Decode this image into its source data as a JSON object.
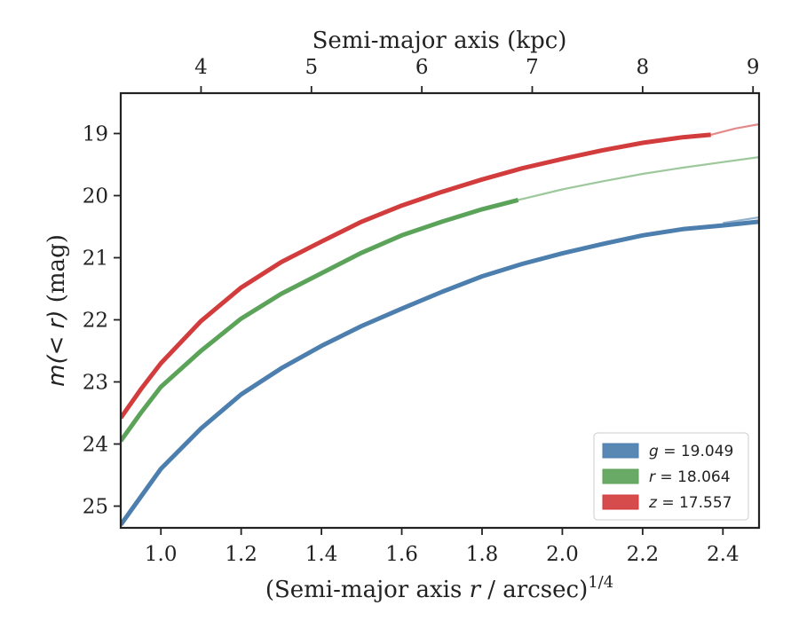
{
  "chart_data": {
    "type": "line",
    "title": "",
    "xlabel": "(Semi-major axis r / arcsec)^{1/4}",
    "xlabel_parts": {
      "pre": "(Semi-major axis ",
      "var": "r",
      "mid": " / arcsec)",
      "sup": "1/4"
    },
    "x2label": "Semi-major axis (kpc)",
    "ylabel": "m(<r) (mag)",
    "ylabel_parts": {
      "math": "m(< r)",
      "unit": " (mag)"
    },
    "xlim": [
      0.9,
      2.49
    ],
    "ylim": [
      25.35,
      18.35
    ],
    "y_inverted": true,
    "x_ticks": [
      1.0,
      1.2,
      1.4,
      1.6,
      1.8,
      2.0,
      2.2,
      2.4
    ],
    "x_tick_labels": [
      "1.0",
      "1.2",
      "1.4",
      "1.6",
      "1.8",
      "2.0",
      "2.2",
      "2.4"
    ],
    "y_ticks": [
      19,
      20,
      21,
      22,
      23,
      24,
      25
    ],
    "y_tick_labels": [
      "19",
      "20",
      "21",
      "22",
      "23",
      "24",
      "25"
    ],
    "top_axis": {
      "label": "Semi-major axis (kpc)",
      "ticks": [
        {
          "label": "4",
          "x": 1.1
        },
        {
          "label": "5",
          "x": 1.375
        },
        {
          "label": "6",
          "x": 1.65
        },
        {
          "label": "7",
          "x": 1.925
        },
        {
          "label": "8",
          "x": 2.2
        },
        {
          "label": "9",
          "x": 2.475
        }
      ]
    },
    "grid": false,
    "legend_position": "bottom-right",
    "series": [
      {
        "name": "g = 19.049",
        "legend_var": "g",
        "legend_value": "= 19.049",
        "color": "#4c7eae",
        "x": [
          0.9,
          0.95,
          1.0,
          1.1,
          1.2,
          1.3,
          1.4,
          1.5,
          1.6,
          1.7,
          1.8,
          1.9,
          2.0,
          2.1,
          2.2,
          2.3,
          2.4,
          2.49
        ],
        "y": [
          25.3,
          24.85,
          24.4,
          23.75,
          23.2,
          22.78,
          22.42,
          22.1,
          21.82,
          21.55,
          21.3,
          21.1,
          20.93,
          20.78,
          20.64,
          20.54,
          20.48,
          20.42
        ],
        "extrapolated": {
          "x": [
            2.4,
            2.49
          ],
          "y": [
            20.44,
            20.35
          ]
        }
      },
      {
        "name": "r = 18.064",
        "legend_var": "r",
        "legend_value": "= 18.064",
        "color": "#5ca35a",
        "x": [
          0.9,
          0.95,
          1.0,
          1.1,
          1.2,
          1.3,
          1.4,
          1.5,
          1.6,
          1.7,
          1.8,
          1.89
        ],
        "y": [
          23.95,
          23.5,
          23.08,
          22.5,
          21.98,
          21.58,
          21.25,
          20.92,
          20.64,
          20.42,
          20.22,
          20.07
        ],
        "extrapolated": {
          "x": [
            1.89,
            2.0,
            2.1,
            2.2,
            2.3,
            2.4,
            2.49
          ],
          "y": [
            20.07,
            19.9,
            19.77,
            19.65,
            19.55,
            19.46,
            19.38
          ]
        }
      },
      {
        "name": "z = 17.557",
        "legend_var": "z",
        "legend_value": "= 17.557",
        "color": "#d23c3c",
        "x": [
          0.9,
          0.95,
          1.0,
          1.1,
          1.2,
          1.3,
          1.4,
          1.5,
          1.6,
          1.7,
          1.8,
          1.9,
          2.0,
          2.1,
          2.2,
          2.3,
          2.37
        ],
        "y": [
          23.58,
          23.12,
          22.7,
          22.02,
          21.48,
          21.07,
          20.74,
          20.42,
          20.16,
          19.94,
          19.74,
          19.56,
          19.41,
          19.27,
          19.15,
          19.06,
          19.02
        ],
        "extrapolated": {
          "x": [
            2.37,
            2.43,
            2.49
          ],
          "y": [
            19.02,
            18.92,
            18.85
          ]
        }
      }
    ]
  }
}
